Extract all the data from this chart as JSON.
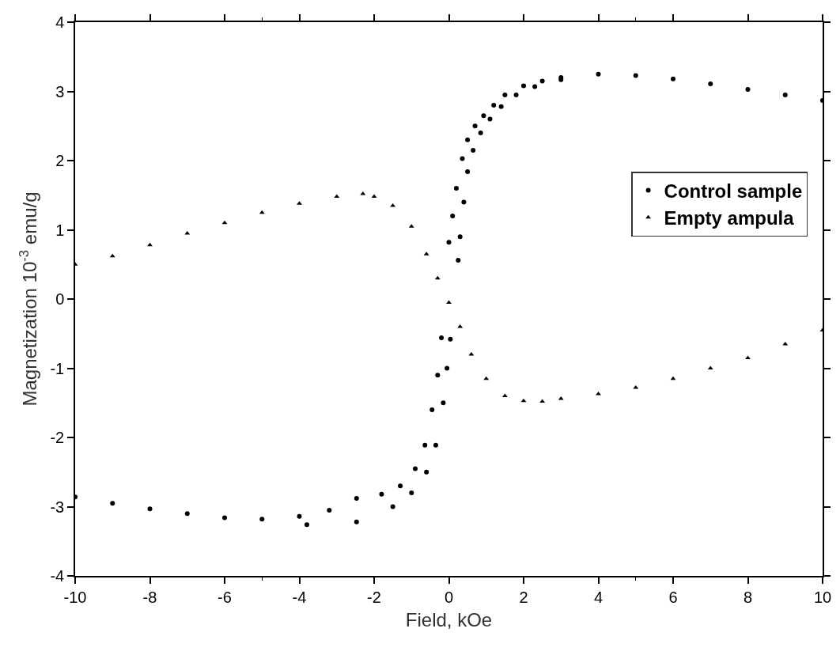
{
  "chart_data": {
    "type": "scatter",
    "xlabel": "Field, kOe",
    "ylabel": "Magnetization 10$^{-3}$ emu/g",
    "xlim": [
      -10,
      10
    ],
    "xticks": [
      -10,
      -8,
      -6,
      -4,
      -2,
      0,
      2,
      4,
      6,
      8,
      10
    ],
    "ylim": [
      -4,
      4
    ],
    "yticks": [
      -4,
      -3,
      -2,
      -1,
      0,
      1,
      2,
      3,
      4
    ],
    "grid": false,
    "legend": "right",
    "series": [
      {
        "name": "Control sample",
        "color": "#000000",
        "marker": "circle",
        "x": [
          0.0,
          0.1,
          0.2,
          0.36,
          0.5,
          0.7,
          0.93,
          1.2,
          1.5,
          2,
          2.5,
          3,
          4,
          5,
          6,
          7,
          8,
          9,
          10,
          null,
          0.25,
          0.3,
          0.4,
          0.5,
          0.65,
          0.85,
          1.1,
          1.4,
          1.8,
          2.3,
          3,
          null,
          0.04,
          -0.05,
          -0.15,
          -0.35,
          -0.6,
          -1.0,
          -1.5,
          -2.47,
          -3.8,
          null,
          -0.2,
          -0.3,
          -0.45,
          -0.64,
          -0.9,
          -1.3,
          -1.8,
          -2.47,
          -3.2,
          -4,
          -5,
          -6,
          -7,
          -8,
          -9,
          -10
        ],
        "values": [
          0.82,
          1.2,
          1.6,
          2.03,
          2.3,
          2.5,
          2.65,
          2.8,
          2.95,
          3.08,
          3.15,
          3.2,
          3.25,
          3.23,
          3.18,
          3.11,
          3.03,
          2.95,
          2.87,
          null,
          0.56,
          0.9,
          1.4,
          1.84,
          2.15,
          2.4,
          2.6,
          2.78,
          2.95,
          3.07,
          3.17,
          null,
          -0.58,
          -1.0,
          -1.5,
          -2.11,
          -2.5,
          -2.8,
          -3.0,
          -3.22,
          -3.26,
          null,
          -0.56,
          -1.1,
          -1.6,
          -2.11,
          -2.45,
          -2.7,
          -2.82,
          -2.88,
          -3.05,
          -3.14,
          -3.18,
          -3.16,
          -3.1,
          -3.03,
          -2.95,
          -2.86
        ]
      },
      {
        "name": "Empty ampula",
        "color": "#000000",
        "marker": "triangle",
        "x": [
          -10,
          -9,
          -8,
          -7,
          -6,
          -5,
          -4,
          -3,
          -2.3,
          -2,
          -1.5,
          -1,
          -0.6,
          -0.3,
          0,
          0.3,
          0.6,
          1,
          1.5,
          2,
          2.5,
          3,
          4,
          5,
          6,
          7,
          8,
          9,
          10
        ],
        "values": [
          0.5,
          0.62,
          0.78,
          0.95,
          1.1,
          1.25,
          1.38,
          1.48,
          1.52,
          1.48,
          1.35,
          1.05,
          0.65,
          0.3,
          -0.05,
          -0.4,
          -0.8,
          -1.15,
          -1.4,
          -1.47,
          -1.48,
          -1.44,
          -1.37,
          -1.28,
          -1.15,
          -1.0,
          -0.85,
          -0.65,
          -0.45
        ]
      }
    ]
  }
}
